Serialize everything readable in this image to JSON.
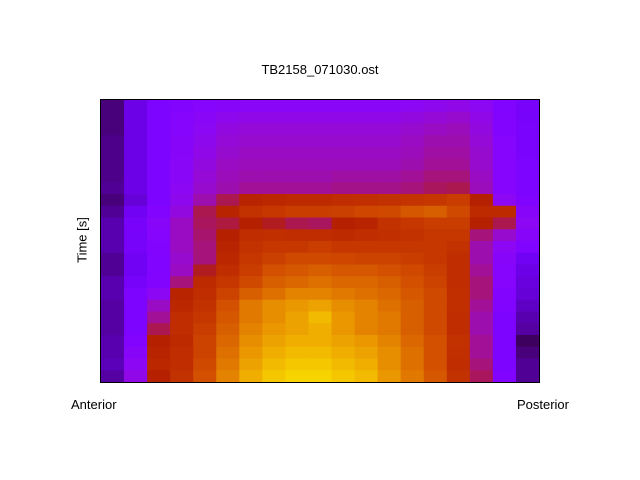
{
  "chart_data": {
    "type": "heatmap",
    "title": "TB2158_071030.ost",
    "ylabel": "Time [s]",
    "xlabel_left": "Anterior",
    "xlabel_right": "Posterior",
    "colormap": "black-purple-red-yellow",
    "value_range": [
      0,
      1
    ],
    "rows_top_to_bottom": [
      [
        0.08,
        0.18,
        0.24,
        0.26,
        0.27,
        0.28,
        0.29,
        0.29,
        0.29,
        0.29,
        0.29,
        0.29,
        0.29,
        0.3,
        0.31,
        0.32,
        0.3,
        0.25,
        0.22
      ],
      [
        0.08,
        0.18,
        0.24,
        0.27,
        0.29,
        0.31,
        0.32,
        0.32,
        0.32,
        0.32,
        0.32,
        0.32,
        0.32,
        0.33,
        0.34,
        0.35,
        0.32,
        0.26,
        0.22
      ],
      [
        0.08,
        0.18,
        0.24,
        0.27,
        0.3,
        0.33,
        0.34,
        0.34,
        0.34,
        0.34,
        0.34,
        0.34,
        0.34,
        0.35,
        0.36,
        0.37,
        0.33,
        0.26,
        0.23
      ],
      [
        0.09,
        0.18,
        0.24,
        0.28,
        0.31,
        0.34,
        0.35,
        0.35,
        0.35,
        0.35,
        0.35,
        0.35,
        0.35,
        0.36,
        0.38,
        0.38,
        0.34,
        0.27,
        0.23
      ],
      [
        0.09,
        0.18,
        0.24,
        0.28,
        0.32,
        0.35,
        0.36,
        0.36,
        0.36,
        0.36,
        0.36,
        0.36,
        0.36,
        0.37,
        0.39,
        0.39,
        0.35,
        0.27,
        0.23
      ],
      [
        0.09,
        0.18,
        0.24,
        0.29,
        0.33,
        0.36,
        0.37,
        0.37,
        0.37,
        0.37,
        0.37,
        0.37,
        0.37,
        0.38,
        0.4,
        0.4,
        0.35,
        0.27,
        0.24
      ],
      [
        0.09,
        0.18,
        0.24,
        0.29,
        0.34,
        0.37,
        0.38,
        0.38,
        0.38,
        0.38,
        0.39,
        0.39,
        0.39,
        0.4,
        0.42,
        0.42,
        0.36,
        0.27,
        0.24
      ],
      [
        0.1,
        0.18,
        0.24,
        0.3,
        0.35,
        0.38,
        0.4,
        0.4,
        0.4,
        0.4,
        0.41,
        0.41,
        0.41,
        0.42,
        0.44,
        0.45,
        0.37,
        0.27,
        0.24
      ],
      [
        0.08,
        0.16,
        0.24,
        0.31,
        0.38,
        0.45,
        0.52,
        0.54,
        0.55,
        0.55,
        0.56,
        0.57,
        0.58,
        0.59,
        0.6,
        0.62,
        0.5,
        0.3,
        0.25
      ],
      [
        0.1,
        0.2,
        0.26,
        0.33,
        0.45,
        0.52,
        0.58,
        0.6,
        0.62,
        0.62,
        0.63,
        0.65,
        0.66,
        0.7,
        0.72,
        0.66,
        0.55,
        0.55,
        0.28
      ],
      [
        0.12,
        0.22,
        0.28,
        0.36,
        0.44,
        0.46,
        0.5,
        0.48,
        0.45,
        0.44,
        0.5,
        0.52,
        0.58,
        0.6,
        0.62,
        0.62,
        0.5,
        0.45,
        0.3
      ],
      [
        0.12,
        0.22,
        0.27,
        0.36,
        0.43,
        0.5,
        0.56,
        0.57,
        0.56,
        0.56,
        0.55,
        0.56,
        0.57,
        0.58,
        0.6,
        0.6,
        0.42,
        0.35,
        0.28
      ],
      [
        0.12,
        0.22,
        0.26,
        0.36,
        0.42,
        0.52,
        0.58,
        0.6,
        0.6,
        0.62,
        0.6,
        0.6,
        0.6,
        0.6,
        0.6,
        0.58,
        0.38,
        0.3,
        0.25
      ],
      [
        0.1,
        0.2,
        0.25,
        0.35,
        0.42,
        0.54,
        0.6,
        0.63,
        0.66,
        0.66,
        0.65,
        0.64,
        0.64,
        0.62,
        0.6,
        0.56,
        0.38,
        0.28,
        0.2
      ],
      [
        0.1,
        0.2,
        0.25,
        0.36,
        0.48,
        0.56,
        0.62,
        0.68,
        0.7,
        0.72,
        0.7,
        0.7,
        0.68,
        0.66,
        0.62,
        0.56,
        0.4,
        0.27,
        0.18
      ],
      [
        0.12,
        0.22,
        0.26,
        0.42,
        0.55,
        0.6,
        0.66,
        0.72,
        0.74,
        0.76,
        0.74,
        0.74,
        0.72,
        0.68,
        0.64,
        0.56,
        0.42,
        0.27,
        0.17
      ],
      [
        0.12,
        0.24,
        0.3,
        0.52,
        0.56,
        0.64,
        0.72,
        0.76,
        0.8,
        0.8,
        0.78,
        0.76,
        0.74,
        0.7,
        0.66,
        0.57,
        0.42,
        0.26,
        0.16
      ],
      [
        0.11,
        0.24,
        0.36,
        0.54,
        0.58,
        0.68,
        0.78,
        0.82,
        0.84,
        0.86,
        0.82,
        0.8,
        0.76,
        0.72,
        0.66,
        0.57,
        0.4,
        0.25,
        0.14
      ],
      [
        0.11,
        0.24,
        0.4,
        0.56,
        0.6,
        0.7,
        0.78,
        0.82,
        0.86,
        0.9,
        0.84,
        0.8,
        0.78,
        0.72,
        0.66,
        0.56,
        0.38,
        0.24,
        0.12
      ],
      [
        0.11,
        0.24,
        0.45,
        0.56,
        0.62,
        0.72,
        0.8,
        0.84,
        0.86,
        0.88,
        0.84,
        0.8,
        0.78,
        0.72,
        0.66,
        0.56,
        0.38,
        0.24,
        0.11
      ],
      [
        0.12,
        0.26,
        0.5,
        0.55,
        0.64,
        0.74,
        0.82,
        0.86,
        0.88,
        0.88,
        0.86,
        0.84,
        0.8,
        0.74,
        0.68,
        0.58,
        0.4,
        0.24,
        0.06
      ],
      [
        0.12,
        0.28,
        0.52,
        0.56,
        0.64,
        0.76,
        0.84,
        0.88,
        0.9,
        0.9,
        0.88,
        0.86,
        0.82,
        0.76,
        0.68,
        0.57,
        0.4,
        0.24,
        0.08
      ],
      [
        0.13,
        0.3,
        0.54,
        0.56,
        0.66,
        0.78,
        0.86,
        0.9,
        0.92,
        0.92,
        0.9,
        0.88,
        0.82,
        0.76,
        0.68,
        0.56,
        0.42,
        0.24,
        0.1
      ],
      [
        0.11,
        0.32,
        0.5,
        0.58,
        0.68,
        0.8,
        0.88,
        0.92,
        0.94,
        0.94,
        0.92,
        0.9,
        0.84,
        0.78,
        0.7,
        0.58,
        0.44,
        0.25,
        0.1
      ]
    ],
    "grid": false,
    "legend": "none"
  }
}
